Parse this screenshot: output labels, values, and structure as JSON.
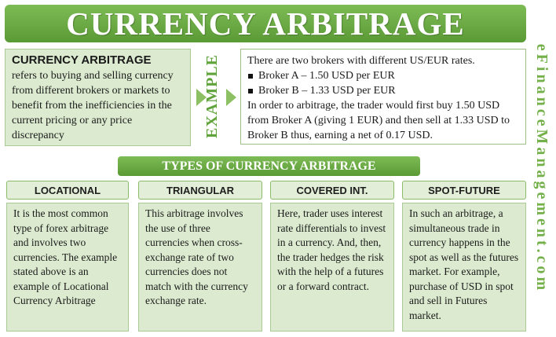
{
  "title": "CURRENCY ARBITRAGE",
  "definition": {
    "term": "CURRENCY ARBITRAGE",
    "text": "refers to buying and selling currency from different brokers or markets to benefit from the inefficiencies in the current pricing or any price discrepancy"
  },
  "example": {
    "label": "EXAMPLE",
    "intro": "There are two brokers with different US/EUR rates.",
    "bullets": [
      "Broker A – 1.50 USD per EUR",
      "Broker B – 1.33 USD per EUR"
    ],
    "explanation": "In order to arbitrage, the trader would first buy 1.50 USD from Broker A (giving 1 EUR) and then sell at 1.33 USD to Broker B thus, earning a net of 0.17 USD."
  },
  "types_title": "TYPES OF CURRENCY ARBITRAGE",
  "types": [
    {
      "name": "LOCATIONAL",
      "text": "It is the most common type of forex arbitrage and involves two currencies. The example stated above is an example of Locational Currency Arbitrage"
    },
    {
      "name": "TRIANGULAR",
      "text": "This arbitrage involves the use of three currencies when cross-exchange rate of two currencies does not match with the currency exchange rate."
    },
    {
      "name": "COVERED INT.",
      "text": "Here, trader uses interest rate differentials to invest in a currency. And, then, the trader hedges the risk with the help of a futures or a forward contract."
    },
    {
      "name": "SPOT-FUTURE",
      "text": "In such an arbitrage, a simultaneous trade in currency happens in the spot as well as the futures market. For example, purchase of USD in spot and sell in Futures market."
    }
  ],
  "watermark": "eFinanceManagement.com",
  "colors": {
    "accent_green": "#5a9a35",
    "light_green": "#dcebd0"
  }
}
